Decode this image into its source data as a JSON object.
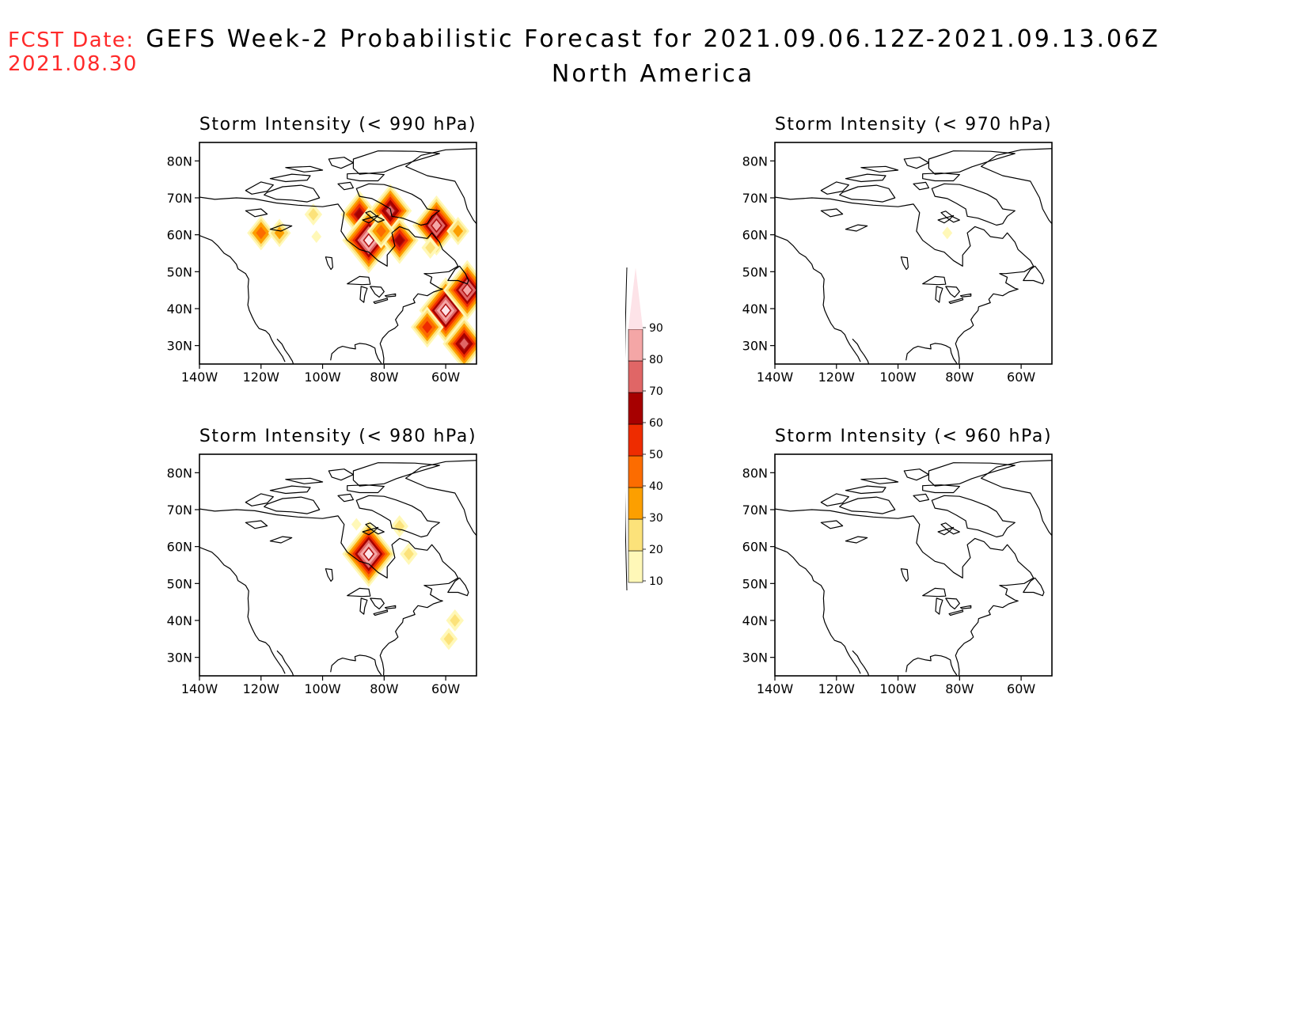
{
  "header": {
    "fcst_label": "FCST Date:",
    "fcst_date": "2021.08.30",
    "title": "GEFS Week-2 Probabilistic Forecast for 2021.09.06.12Z-2021.09.13.06Z",
    "subtitle": "North America"
  },
  "axes": {
    "lon_ticks": [
      "140W",
      "120W",
      "100W",
      "80W",
      "60W"
    ],
    "lat_ticks": [
      "80N",
      "70N",
      "60N",
      "50N",
      "40N",
      "30N"
    ],
    "lon_values": [
      -140,
      -120,
      -100,
      -80,
      -60
    ],
    "lat_values": [
      80,
      70,
      60,
      50,
      40,
      30
    ],
    "lon_range": [
      -140,
      -50
    ],
    "lat_range": [
      25,
      85
    ]
  },
  "panels": [
    {
      "id": "p990",
      "title": "Storm Intensity (< 990 hPa)",
      "features": [
        {
          "lon": -120,
          "lat": 60.5,
          "p": 40
        },
        {
          "lon": -114,
          "lat": 60.5,
          "p": 30
        },
        {
          "lon": -103,
          "lat": 65.5,
          "p": 20
        },
        {
          "lon": -102,
          "lat": 59.5,
          "p": 15
        },
        {
          "lon": -88,
          "lat": 65.5,
          "p": 60
        },
        {
          "lon": -85,
          "lat": 58.5,
          "p": 90
        },
        {
          "lon": -78,
          "lat": 66.5,
          "p": 70
        },
        {
          "lon": -75,
          "lat": 58.5,
          "p": 60
        },
        {
          "lon": -81,
          "lat": 61,
          "p": 45
        },
        {
          "lon": -63,
          "lat": 62.5,
          "p": 80
        },
        {
          "lon": -56,
          "lat": 61,
          "p": 35
        },
        {
          "lon": -65,
          "lat": 56.5,
          "p": 25
        },
        {
          "lon": -60,
          "lat": 39.5,
          "p": 90
        },
        {
          "lon": -53,
          "lat": 45,
          "p": 80
        },
        {
          "lon": -54,
          "lat": 30.5,
          "p": 70
        },
        {
          "lon": -66,
          "lat": 35,
          "p": 50
        }
      ]
    },
    {
      "id": "p970",
      "title": "Storm Intensity (< 970 hPa)",
      "features": [
        {
          "lon": -84,
          "lat": 60.5,
          "p": 12
        }
      ]
    },
    {
      "id": "p980",
      "title": "Storm Intensity (< 980 hPa)",
      "features": [
        {
          "lon": -85,
          "lat": 58,
          "p": 90
        },
        {
          "lon": -75,
          "lat": 65.5,
          "p": 25
        },
        {
          "lon": -72,
          "lat": 58,
          "p": 20
        },
        {
          "lon": -89,
          "lat": 66,
          "p": 15
        },
        {
          "lon": -57,
          "lat": 40,
          "p": 20
        },
        {
          "lon": -59,
          "lat": 35,
          "p": 25
        }
      ]
    },
    {
      "id": "p960",
      "title": "Storm Intensity (< 960 hPa)",
      "features": []
    }
  ],
  "colorbar": {
    "levels": [
      "10",
      "20",
      "30",
      "40",
      "50",
      "60",
      "70",
      "80",
      "90"
    ],
    "colors": [
      "#fff8b8",
      "#fce27a",
      "#fc9f00",
      "#fc6c00",
      "#ee2c00",
      "#a60000",
      "#e06666",
      "#f4a6a6",
      "#fde3e8"
    ]
  },
  "colors": {
    "fcst": "#ff2a2a",
    "coast": "#000000"
  }
}
